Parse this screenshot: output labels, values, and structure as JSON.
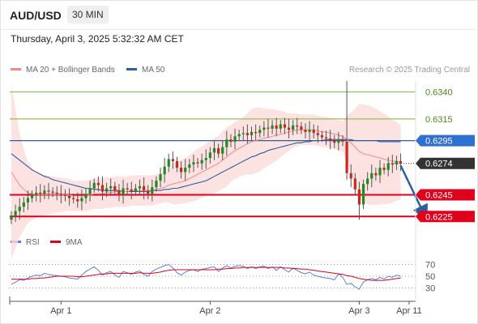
{
  "header": {
    "pair": "AUD/USD",
    "timeframe": "30 MIN"
  },
  "timestamp": "Thursday, April 3, 2025 5:32:32 AM CET",
  "legend": {
    "ma20": {
      "label": "MA 20 + Bollinger Bands",
      "color": "#f08a86"
    },
    "ma50": {
      "label": "MA 50",
      "color": "#2f5e9e"
    }
  },
  "credit": "Research © 2025 Trading Central",
  "rsi_legend": {
    "rsi": {
      "label": "RSI",
      "color": "#5b7fd6"
    },
    "ma9": {
      "label": "9MA",
      "color": "#e0001b"
    }
  },
  "colors": {
    "up": "#1f8a1f",
    "down": "#c8281e",
    "resistance": "#7cb342",
    "support": "#e0001b",
    "pivot": "#2f5e9e",
    "arrow": "#2f5e9e"
  },
  "chart_data": [
    {
      "type": "candlestick",
      "ylim": [
        0.6217,
        0.635
      ],
      "x_tick_labels": [
        {
          "label": "Apr 1",
          "index": 12
        },
        {
          "label": "Apr 2",
          "index": 48
        },
        {
          "label": "Apr 3",
          "index": 84
        },
        {
          "label": "Apr 11",
          "index": 98
        }
      ],
      "levels": [
        {
          "value": 0.634,
          "label": "0.6340",
          "kind": "resistance"
        },
        {
          "value": 0.6315,
          "label": "0.6315",
          "kind": "resistance"
        },
        {
          "value": 0.6295,
          "label": "0.6295",
          "kind": "pivot"
        },
        {
          "value": 0.6274,
          "label": "0.6274",
          "kind": "current"
        },
        {
          "value": 0.6245,
          "label": "0.6245",
          "kind": "support"
        },
        {
          "value": 0.6225,
          "label": "0.6225",
          "kind": "support"
        }
      ],
      "forecast_arrow": {
        "from_index": 94,
        "from_value": 0.6272,
        "to_index": 100,
        "to_value": 0.6226
      },
      "close": [
        0.6226,
        0.623,
        0.6234,
        0.6238,
        0.6242,
        0.6245,
        0.6247,
        0.6246,
        0.6249,
        0.6248,
        0.6247,
        0.6246,
        0.6245,
        0.6244,
        0.6242,
        0.6241,
        0.6239,
        0.6242,
        0.6246,
        0.6251,
        0.6256,
        0.6254,
        0.6248,
        0.6251,
        0.6253,
        0.6249,
        0.6245,
        0.6251,
        0.625,
        0.6248,
        0.6251,
        0.6253,
        0.6249,
        0.6246,
        0.6252,
        0.6258,
        0.6264,
        0.6271,
        0.6278,
        0.6276,
        0.627,
        0.6266,
        0.627,
        0.6273,
        0.6275,
        0.6274,
        0.6277,
        0.6279,
        0.6284,
        0.6288,
        0.6283,
        0.6289,
        0.6296,
        0.6294,
        0.6299,
        0.6301,
        0.6302,
        0.63,
        0.6303,
        0.6302,
        0.6305,
        0.6307,
        0.6306,
        0.6309,
        0.6306,
        0.631,
        0.6307,
        0.6305,
        0.6309,
        0.6308,
        0.6305,
        0.6303,
        0.6305,
        0.6302,
        0.63,
        0.6298,
        0.6297,
        0.6295,
        0.6293,
        0.6296,
        0.6294,
        0.6265,
        0.626,
        0.625,
        0.6236,
        0.6255,
        0.626,
        0.6265,
        0.6263,
        0.627,
        0.6268,
        0.6274,
        0.6273,
        0.6276,
        0.6274
      ],
      "ma20": [
        0.6266,
        0.626,
        0.6254,
        0.625,
        0.6247,
        0.6246,
        0.6245,
        0.6245,
        0.6245,
        0.6245,
        0.6245,
        0.6245,
        0.6245,
        0.6245,
        0.6245,
        0.6244,
        0.6244,
        0.6244,
        0.6244,
        0.6245,
        0.6246,
        0.6246,
        0.6246,
        0.6247,
        0.6247,
        0.6248,
        0.6248,
        0.6248,
        0.6248,
        0.6249,
        0.6249,
        0.6249,
        0.6249,
        0.6249,
        0.6249,
        0.625,
        0.6251,
        0.6252,
        0.6254,
        0.6255,
        0.6256,
        0.6257,
        0.6258,
        0.626,
        0.6262,
        0.6264,
        0.6266,
        0.6268,
        0.627,
        0.6272,
        0.6274,
        0.6277,
        0.628,
        0.6283,
        0.6286,
        0.6288,
        0.629,
        0.6292,
        0.6294,
        0.6295,
        0.6296,
        0.6297,
        0.6298,
        0.6299,
        0.63,
        0.6301,
        0.6302,
        0.6303,
        0.6304,
        0.6305,
        0.6305,
        0.6305,
        0.6305,
        0.6305,
        0.6304,
        0.6303,
        0.6303,
        0.6302,
        0.6301,
        0.63,
        0.6299,
        0.6296,
        0.6293,
        0.6289,
        0.6285,
        0.6283,
        0.6282,
        0.6281,
        0.628,
        0.6279,
        0.6278,
        0.6277,
        0.6276,
        0.6276,
        0.6275
      ],
      "ma50": [
        0.6283,
        0.628,
        0.6277,
        0.6274,
        0.6271,
        0.6268,
        0.6266,
        0.6264,
        0.6262,
        0.6261,
        0.6259,
        0.6258,
        0.6257,
        0.6256,
        0.6255,
        0.6254,
        0.6253,
        0.6252,
        0.6251,
        0.6251,
        0.625,
        0.625,
        0.6249,
        0.6249,
        0.6249,
        0.6249,
        0.6249,
        0.6248,
        0.6248,
        0.6248,
        0.6248,
        0.6248,
        0.6248,
        0.6248,
        0.6249,
        0.6249,
        0.6249,
        0.625,
        0.625,
        0.6251,
        0.6251,
        0.6252,
        0.6253,
        0.6254,
        0.6255,
        0.6256,
        0.6257,
        0.6258,
        0.626,
        0.6262,
        0.6264,
        0.6266,
        0.6268,
        0.627,
        0.6272,
        0.6274,
        0.6276,
        0.6278,
        0.628,
        0.6281,
        0.6283,
        0.6284,
        0.6286,
        0.6287,
        0.6288,
        0.6289,
        0.629,
        0.6291,
        0.6292,
        0.6293,
        0.6293,
        0.6294,
        0.6294,
        0.6295,
        0.6295,
        0.6295,
        0.6296,
        0.6296,
        0.6296,
        0.6296,
        0.6296,
        0.6296,
        0.6296,
        0.6295,
        0.6295,
        0.6295,
        0.6295,
        0.6295,
        0.6295,
        0.6294,
        0.6294,
        0.6294,
        0.6294,
        0.6294,
        0.6294
      ]
    },
    {
      "type": "line",
      "ylim": [
        10,
        90
      ],
      "y_tick_labels": [
        70,
        50,
        30
      ],
      "rsi": [
        36,
        40,
        44,
        43,
        47,
        50,
        52,
        51,
        55,
        53,
        52,
        51,
        50,
        49,
        47,
        46,
        45,
        52,
        58,
        62,
        66,
        60,
        52,
        56,
        58,
        52,
        48,
        58,
        56,
        53,
        57,
        59,
        53,
        50,
        58,
        62,
        65,
        68,
        70,
        64,
        56,
        52,
        57,
        60,
        61,
        58,
        62,
        63,
        65,
        66,
        58,
        64,
        68,
        64,
        67,
        68,
        67,
        63,
        66,
        63,
        66,
        67,
        63,
        66,
        60,
        66,
        61,
        57,
        64,
        60,
        56,
        54,
        57,
        52,
        50,
        48,
        47,
        46,
        44,
        54,
        48,
        36,
        38,
        32,
        28,
        40,
        44,
        46,
        44,
        48,
        45,
        50,
        48,
        52,
        50
      ],
      "ma9": [
        45,
        45,
        45,
        45,
        45,
        46,
        46,
        47,
        47,
        48,
        49,
        50,
        50,
        50,
        50,
        50,
        49,
        49,
        50,
        51,
        52,
        53,
        54,
        54,
        55,
        55,
        55,
        55,
        55,
        55,
        55,
        56,
        55,
        55,
        55,
        56,
        57,
        59,
        60,
        61,
        61,
        61,
        61,
        61,
        61,
        61,
        61,
        61,
        61,
        61,
        62,
        62,
        63,
        63,
        64,
        64,
        65,
        65,
        65,
        65,
        65,
        65,
        65,
        65,
        65,
        65,
        64,
        64,
        63,
        63,
        62,
        62,
        61,
        60,
        59,
        58,
        57,
        56,
        55,
        54,
        53,
        51,
        50,
        48,
        46,
        45,
        44,
        43,
        43,
        43,
        43,
        44,
        45,
        46,
        47
      ]
    }
  ]
}
